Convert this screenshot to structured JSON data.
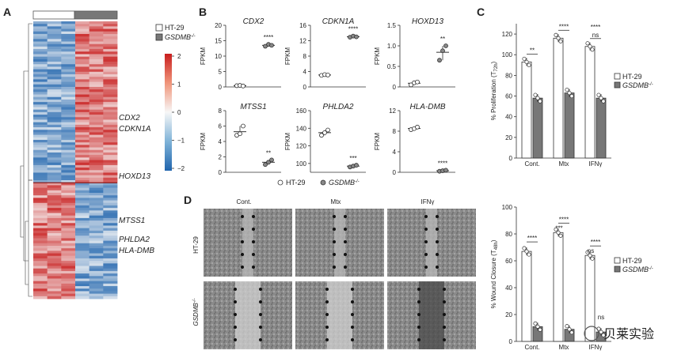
{
  "panels": {
    "A": "A",
    "B": "B",
    "C": "C",
    "D": "D"
  },
  "legend": {
    "ht29": "HT-29",
    "gsdmb": "GSDMB",
    "gsdmb_sup": "-/-"
  },
  "panelA": {
    "colorbar_ticks": [
      "2",
      "1",
      "0",
      "−1",
      "−2"
    ],
    "genes_top": [
      "CDX2",
      "CDKN1A"
    ],
    "gene_mid": "HOXD13",
    "genes_bottom": [
      "MTSS1",
      "PHLDA2",
      "HLA-DMB"
    ]
  },
  "panelB": {
    "ylabel": "FPKM",
    "plots": [
      {
        "title": "CDX2",
        "ticks": [
          "0",
          "5",
          "10",
          "15",
          "20"
        ],
        "sig": "****",
        "ht29": [
          0.4,
          0.5,
          0.3
        ],
        "ko": [
          13.2,
          13.8,
          13.5
        ],
        "ymax": 20
      },
      {
        "title": "CDKN1A",
        "ticks": [
          "0",
          "4",
          "8",
          "12",
          "16"
        ],
        "sig": "****",
        "ht29": [
          3.0,
          3.2,
          3.1
        ],
        "ko": [
          12.9,
          13.2,
          13.0
        ],
        "ymax": 16
      },
      {
        "title": "HOXD13",
        "ticks": [
          "0",
          "0.5",
          "1.0",
          "1.5"
        ],
        "sig": "**",
        "ht29": [
          0.05,
          0.1,
          0.12
        ],
        "ko": [
          0.65,
          0.88,
          1.0
        ],
        "ymax": 1.5
      },
      {
        "title": "MTSS1",
        "ticks": [
          "0",
          "2",
          "4",
          "6",
          "8"
        ],
        "sig": "**",
        "ht29": [
          4.8,
          5.0,
          6.0
        ],
        "ko": [
          1.0,
          1.3,
          1.6
        ],
        "ymax": 8
      },
      {
        "title": "PHLDA2",
        "ticks": [
          "100",
          "120",
          "140",
          "160"
        ],
        "sig": "***",
        "ht29": [
          132,
          135,
          138
        ],
        "ko": [
          96,
          97,
          98
        ],
        "ymin": 90,
        "ymax": 160
      },
      {
        "title": "HLA-DMB",
        "ticks": [
          "0",
          "4",
          "8",
          "12"
        ],
        "sig": "****",
        "ht29": [
          8.3,
          8.5,
          8.8
        ],
        "ko": [
          0.2,
          0.3,
          0.4
        ],
        "ymax": 12
      }
    ],
    "legend_ht29": "HT-29",
    "legend_ko": "GSDMB",
    "legend_ko_sup": "-/-"
  },
  "panelC": {
    "ylabel": "% Proliferation (T",
    "ylabel_sub": "72h",
    "ylabel_end": ")",
    "ticks": [
      "0",
      "20",
      "40",
      "60",
      "80",
      "100",
      "120"
    ],
    "groups": [
      "Cont.",
      "Mtx",
      "IFNγ"
    ],
    "ht29": [
      93,
      116,
      108
    ],
    "ko": [
      58,
      63,
      58
    ],
    "sig": [
      "**",
      "****",
      "ns"
    ],
    "sig2": [
      "",
      "",
      "****"
    ]
  },
  "panelD": {
    "cols": [
      "Cont.",
      "Mtx",
      "IFNγ"
    ],
    "rows": [
      "HT-29",
      "GSDMB"
    ],
    "row2_sup": "-/-"
  },
  "panelD2": {
    "ylabel": "% Wound Closure (T",
    "ylabel_sub": "48h",
    "ylabel_end": ")",
    "ticks": [
      "0",
      "20",
      "40",
      "60",
      "80",
      "100"
    ],
    "groups": [
      "Cont.",
      "Mtx",
      "IFNγ"
    ],
    "ht29": [
      67,
      81,
      64
    ],
    "ko": [
      11,
      9,
      7
    ],
    "sig_top": [
      "****",
      "****",
      "****"
    ],
    "sig_mid": [
      "",
      "***",
      "ns"
    ],
    "sig_ko_ifn": "ns"
  },
  "watermark": "贝莱实验"
}
